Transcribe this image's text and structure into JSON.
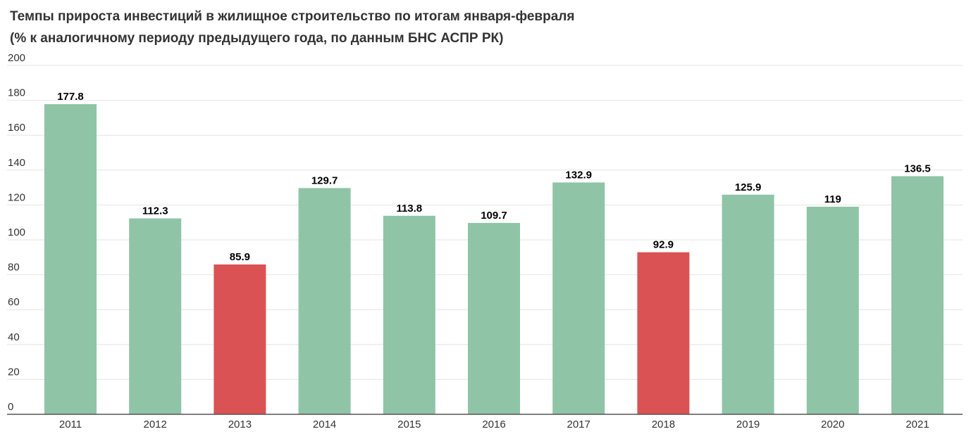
{
  "chart_data": {
    "type": "bar",
    "title": "Темпы прироста инвестиций в жилищное строительство по итогам января-февраля",
    "subtitle": "(% к аналогичному периоду предыдущего года, по данным БНС АСПР РК)",
    "categories": [
      "2011",
      "2012",
      "2013",
      "2014",
      "2015",
      "2016",
      "2017",
      "2018",
      "2019",
      "2020",
      "2021"
    ],
    "values": [
      177.8,
      112.3,
      85.9,
      129.7,
      113.8,
      109.7,
      132.9,
      92.9,
      125.9,
      119,
      136.5
    ],
    "value_labels": [
      "177.8",
      "112.3",
      "85.9",
      "129.7",
      "113.8",
      "109.7",
      "132.9",
      "92.9",
      "125.9",
      "119",
      "136.5"
    ],
    "bar_colors": [
      "#8fc4a7",
      "#8fc4a7",
      "#db5254",
      "#8fc4a7",
      "#8fc4a7",
      "#8fc4a7",
      "#8fc4a7",
      "#db5254",
      "#8fc4a7",
      "#8fc4a7",
      "#8fc4a7"
    ],
    "yticks": [
      "0",
      "20",
      "40",
      "60",
      "80",
      "100",
      "120",
      "140",
      "160",
      "180",
      "200"
    ],
    "ylim": [
      0,
      200
    ],
    "grid": true,
    "xlabel": "",
    "ylabel": ""
  }
}
